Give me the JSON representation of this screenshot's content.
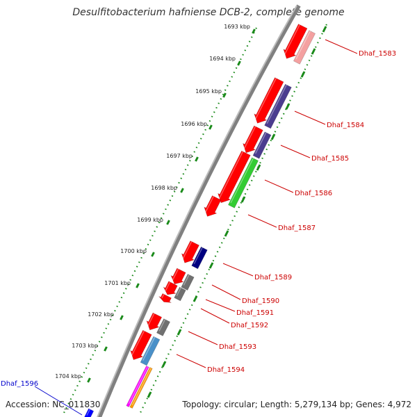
{
  "title": "Desulfitobacterium hafniense DCB-2, complete genome",
  "accession": "Accession: NC_011830",
  "topology": "Topology: circular; Length: 5,279,134 bp; Genes: 4,972",
  "ruler": {
    "unit": "kbp",
    "ticks": [
      "1693 kbp",
      "1694 kbp",
      "1695 kbp",
      "1696 kbp",
      "1697 kbp",
      "1698 kbp",
      "1699 kbp",
      "1700 kbp",
      "1701 kbp",
      "1702 kbp",
      "1703 kbp",
      "1704 kbp"
    ],
    "tick_color": "#1a8a1a"
  },
  "backbone_color": "#808080",
  "genes": [
    {
      "label": "Dhaf_1583",
      "label_color": "#cc0000",
      "strand": "+",
      "color": "#ff0000",
      "cds_color": "#f4a0a0"
    },
    {
      "label": "Dhaf_1584",
      "label_color": "#cc0000",
      "strand": "+",
      "color": "#ff0000",
      "cds_color": "#4b3d8f"
    },
    {
      "label": "Dhaf_1585",
      "label_color": "#cc0000",
      "strand": "+",
      "color": "#ff0000",
      "cds_color": "#4b3d8f"
    },
    {
      "label": "Dhaf_1586",
      "label_color": "#cc0000",
      "strand": "+",
      "color": "#ff0000",
      "cds_color": "#33cc33"
    },
    {
      "label": "Dhaf_1587",
      "label_color": "#cc0000",
      "strand": "+",
      "color": "#ff0000",
      "cds_color": ""
    },
    {
      "label": "Dhaf_1589",
      "label_color": "#cc0000",
      "strand": "+",
      "color": "#ff0000",
      "cds_color": "#000080"
    },
    {
      "label": "Dhaf_1590",
      "label_color": "#cc0000",
      "strand": "+",
      "color": "#ff0000",
      "cds_color": "#707070"
    },
    {
      "label": "Dhaf_1591",
      "label_color": "#cc0000",
      "strand": "+",
      "color": "#ff0000",
      "cds_color": "#707070"
    },
    {
      "label": "Dhaf_1592",
      "label_color": "#cc0000",
      "strand": "+",
      "color": "#ff0000",
      "cds_color": ""
    },
    {
      "label": "Dhaf_1593",
      "label_color": "#cc0000",
      "strand": "+",
      "color": "#ff0000",
      "cds_color": "#707070"
    },
    {
      "label": "Dhaf_1594",
      "label_color": "#cc0000",
      "strand": "+",
      "color": "#ff0000",
      "cds_color": "#4a90c8"
    },
    {
      "label": "Dhaf_1596",
      "label_color": "#0000cc",
      "strand": "-",
      "color": "#0000ff",
      "cds_color": ""
    }
  ]
}
